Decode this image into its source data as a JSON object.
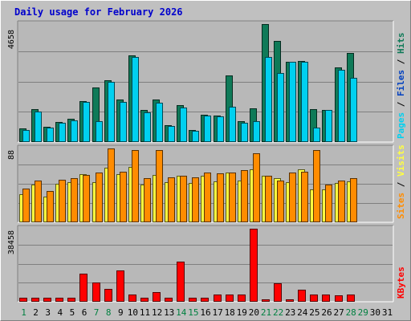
{
  "title": "Daily usage for February 2026",
  "colors": {
    "background": "#c0c0c0",
    "plot": "#b8b8b8",
    "grid": "#7f7f7f",
    "title": "#0000cc",
    "pages": "#00d0f0",
    "hits": "#0f7a58",
    "files": "#0040c0",
    "visits": "#ffff40",
    "sites": "#ff8c00",
    "kbytes": "#ff0000",
    "weekend_label": "#008040",
    "weekday_label": "#000000"
  },
  "chart_data": [
    {
      "type": "bar",
      "panel": "hits-pages",
      "ylabel_value": "4658",
      "ylim": [
        0,
        4658
      ],
      "legend": [
        {
          "label": "Pages",
          "color": "#00d0f0"
        },
        {
          "label": "Files",
          "color": "#0040c0"
        },
        {
          "label": "Hits",
          "color": "#0f7a58"
        }
      ],
      "categories": [
        "1",
        "2",
        "3",
        "4",
        "5",
        "6",
        "7",
        "8",
        "9",
        "10",
        "11",
        "12",
        "13",
        "14",
        "15",
        "16",
        "17",
        "18",
        "19",
        "20",
        "21",
        "22",
        "23",
        "24",
        "25",
        "26",
        "27",
        "28",
        "29",
        "30",
        "31"
      ],
      "series": [
        {
          "name": "Hits",
          "values": [
            551,
            1285,
            612,
            796,
            918,
            1622,
            2143,
            2449,
            1683,
            3428,
            1255,
            1683,
            673,
            1469,
            490,
            1071,
            1040,
            2633,
            826,
            1346,
            4658,
            3979,
            3153,
            3214,
            1285,
            1255,
            2939,
            3520,
            0,
            0,
            0
          ]
        },
        {
          "name": "Pages",
          "values": [
            490,
            1194,
            582,
            765,
            857,
            1592,
            826,
            2388,
            1592,
            3367,
            1163,
            1561,
            643,
            1377,
            459,
            1040,
            1010,
            1408,
            765,
            826,
            3367,
            2725,
            3153,
            3153,
            582,
            1255,
            2847,
            2541,
            0,
            0,
            0
          ]
        }
      ]
    },
    {
      "type": "bar",
      "panel": "visits-sites",
      "ylabel_value": "88",
      "ylim": [
        0,
        88
      ],
      "legend": [
        {
          "label": "Sites",
          "color": "#ff8c00"
        },
        {
          "label": "Visits",
          "color": "#ffff40"
        }
      ],
      "categories": [
        "1",
        "2",
        "3",
        "4",
        "5",
        "6",
        "7",
        "8",
        "9",
        "10",
        "11",
        "12",
        "13",
        "14",
        "15",
        "16",
        "17",
        "18",
        "19",
        "20",
        "21",
        "22",
        "23",
        "24",
        "25",
        "26",
        "27",
        "28",
        "29",
        "30",
        "31"
      ],
      "series": [
        {
          "name": "Visits",
          "values": [
            33,
            45,
            31,
            46,
            48,
            57,
            48,
            65,
            57,
            66,
            45,
            56,
            48,
            55,
            47,
            55,
            49,
            59,
            50,
            63,
            55,
            53,
            48,
            63,
            39,
            39,
            47,
            49,
            0,
            0,
            0
          ]
        },
        {
          "name": "Sites",
          "values": [
            40,
            50,
            37,
            51,
            53,
            56,
            59,
            88,
            60,
            86,
            53,
            86,
            54,
            55,
            54,
            59,
            58,
            59,
            62,
            82,
            55,
            50,
            59,
            60,
            86,
            45,
            50,
            53,
            0,
            0,
            0
          ]
        }
      ]
    },
    {
      "type": "bar",
      "panel": "kbytes",
      "ylabel_value": "38458",
      "ylim": [
        0,
        38458
      ],
      "legend": [
        {
          "label": "KBytes",
          "color": "#ff0000"
        }
      ],
      "categories": [
        "1",
        "2",
        "3",
        "4",
        "5",
        "6",
        "7",
        "8",
        "9",
        "10",
        "11",
        "12",
        "13",
        "14",
        "15",
        "16",
        "17",
        "18",
        "19",
        "20",
        "21",
        "22",
        "23",
        "24",
        "25",
        "26",
        "27",
        "28",
        "29",
        "30",
        "31"
      ],
      "series": [
        {
          "name": "KBytes",
          "values": [
            2100,
            2100,
            2100,
            2100,
            2100,
            15000,
            10200,
            6800,
            16400,
            3600,
            2100,
            5100,
            2100,
            21300,
            2100,
            2100,
            3600,
            3600,
            3600,
            38458,
            1200,
            9800,
            1200,
            6300,
            3600,
            3600,
            3300,
            3600,
            0,
            0,
            0
          ]
        }
      ]
    }
  ],
  "x_labels": [
    {
      "text": "1",
      "weekend": true
    },
    {
      "text": "2",
      "weekend": false
    },
    {
      "text": "3",
      "weekend": false
    },
    {
      "text": "4",
      "weekend": false
    },
    {
      "text": "5",
      "weekend": false
    },
    {
      "text": "6",
      "weekend": false
    },
    {
      "text": "7",
      "weekend": true
    },
    {
      "text": "8",
      "weekend": true
    },
    {
      "text": "9",
      "weekend": false
    },
    {
      "text": "10",
      "weekend": false
    },
    {
      "text": "11",
      "weekend": false
    },
    {
      "text": "12",
      "weekend": false
    },
    {
      "text": "13",
      "weekend": false
    },
    {
      "text": "14",
      "weekend": true
    },
    {
      "text": "15",
      "weekend": true
    },
    {
      "text": "16",
      "weekend": false
    },
    {
      "text": "17",
      "weekend": false
    },
    {
      "text": "18",
      "weekend": false
    },
    {
      "text": "19",
      "weekend": false
    },
    {
      "text": "20",
      "weekend": false
    },
    {
      "text": "21",
      "weekend": true
    },
    {
      "text": "22",
      "weekend": true
    },
    {
      "text": "23",
      "weekend": false
    },
    {
      "text": "24",
      "weekend": false
    },
    {
      "text": "25",
      "weekend": false
    },
    {
      "text": "26",
      "weekend": false
    },
    {
      "text": "27",
      "weekend": false
    },
    {
      "text": "28",
      "weekend": true
    },
    {
      "text": "29",
      "weekend": true
    },
    {
      "text": "30",
      "weekend": false
    },
    {
      "text": "31",
      "weekend": false
    }
  ]
}
